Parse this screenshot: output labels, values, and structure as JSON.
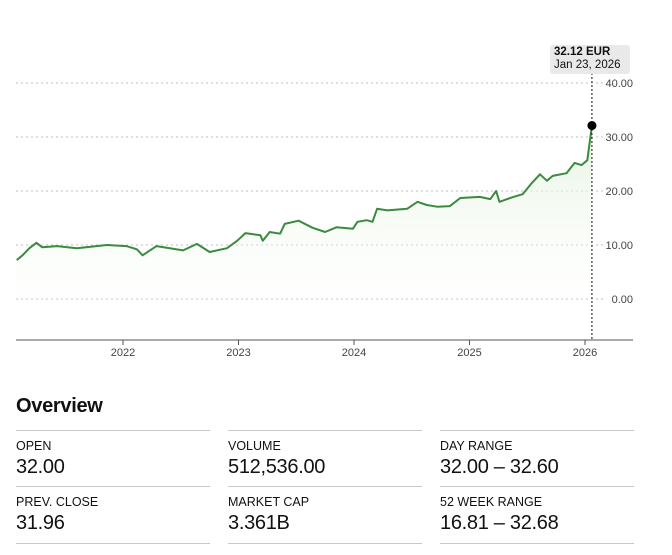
{
  "chart_data": {
    "type": "line",
    "title": "",
    "xlabel": "",
    "ylabel": "",
    "currency": "EUR",
    "x": [
      2021.08,
      2021.13,
      2021.19,
      2021.25,
      2021.3,
      2021.43,
      2021.6,
      2021.86,
      2022.03,
      2022.12,
      2022.17,
      2022.29,
      2022.52,
      2022.64,
      2022.75,
      2022.9,
      2022.99,
      2023.06,
      2023.19,
      2023.21,
      2023.27,
      2023.36,
      2023.4,
      2023.52,
      2023.64,
      2023.75,
      2023.85,
      2023.99,
      2024.03,
      2024.11,
      2024.16,
      2024.2,
      2024.29,
      2024.46,
      2024.55,
      2024.63,
      2024.72,
      2024.83,
      2024.92,
      2025.09,
      2025.18,
      2025.23,
      2025.26,
      2025.38,
      2025.46,
      2025.54,
      2025.61,
      2025.67,
      2025.72,
      2025.84,
      2025.91,
      2025.97,
      2026.02,
      2026.06
    ],
    "values": [
      7.2,
      8.1,
      9.4,
      10.4,
      9.6,
      9.8,
      9.4,
      10.0,
      9.8,
      9.2,
      8.1,
      9.8,
      9.0,
      10.2,
      8.7,
      9.4,
      10.8,
      12.2,
      11.8,
      10.8,
      12.4,
      12.1,
      13.9,
      14.5,
      13.2,
      12.4,
      13.3,
      13.0,
      14.3,
      14.6,
      14.3,
      16.7,
      16.4,
      16.7,
      18.0,
      17.4,
      17.1,
      17.2,
      18.7,
      18.9,
      18.5,
      20.0,
      18.0,
      18.9,
      19.4,
      21.5,
      23.1,
      21.9,
      22.8,
      23.3,
      25.2,
      24.8,
      25.7,
      32.12
    ],
    "x_ticks": [
      2022,
      2023,
      2024,
      2025,
      2026
    ],
    "x_tick_labels": [
      "2022",
      "2023",
      "2024",
      "2025",
      "2026"
    ],
    "y_ticks": [
      0,
      10,
      20,
      30,
      40
    ],
    "y_tick_labels": [
      "0.00",
      "10.00",
      "20.00",
      "30.00",
      "40.00"
    ],
    "ylim": [
      -7.6,
      40
    ],
    "grid": true,
    "line_color": "#3a8a3f",
    "fill_color": "#eef7ea",
    "tooltip": {
      "price": "32.12 EUR",
      "date": "Jan 23, 2026"
    }
  },
  "overview": {
    "title": "Overview",
    "stats": [
      {
        "label": "OPEN",
        "value": "32.00"
      },
      {
        "label": "VOLUME",
        "value": "512,536.00"
      },
      {
        "label": "DAY RANGE",
        "value": "32.00 – 32.60"
      },
      {
        "label": "PREV. CLOSE",
        "value": "31.96"
      },
      {
        "label": "MARKET CAP",
        "value": "3.361B"
      },
      {
        "label": "52 WEEK RANGE",
        "value": "16.81 – 32.68"
      }
    ]
  }
}
